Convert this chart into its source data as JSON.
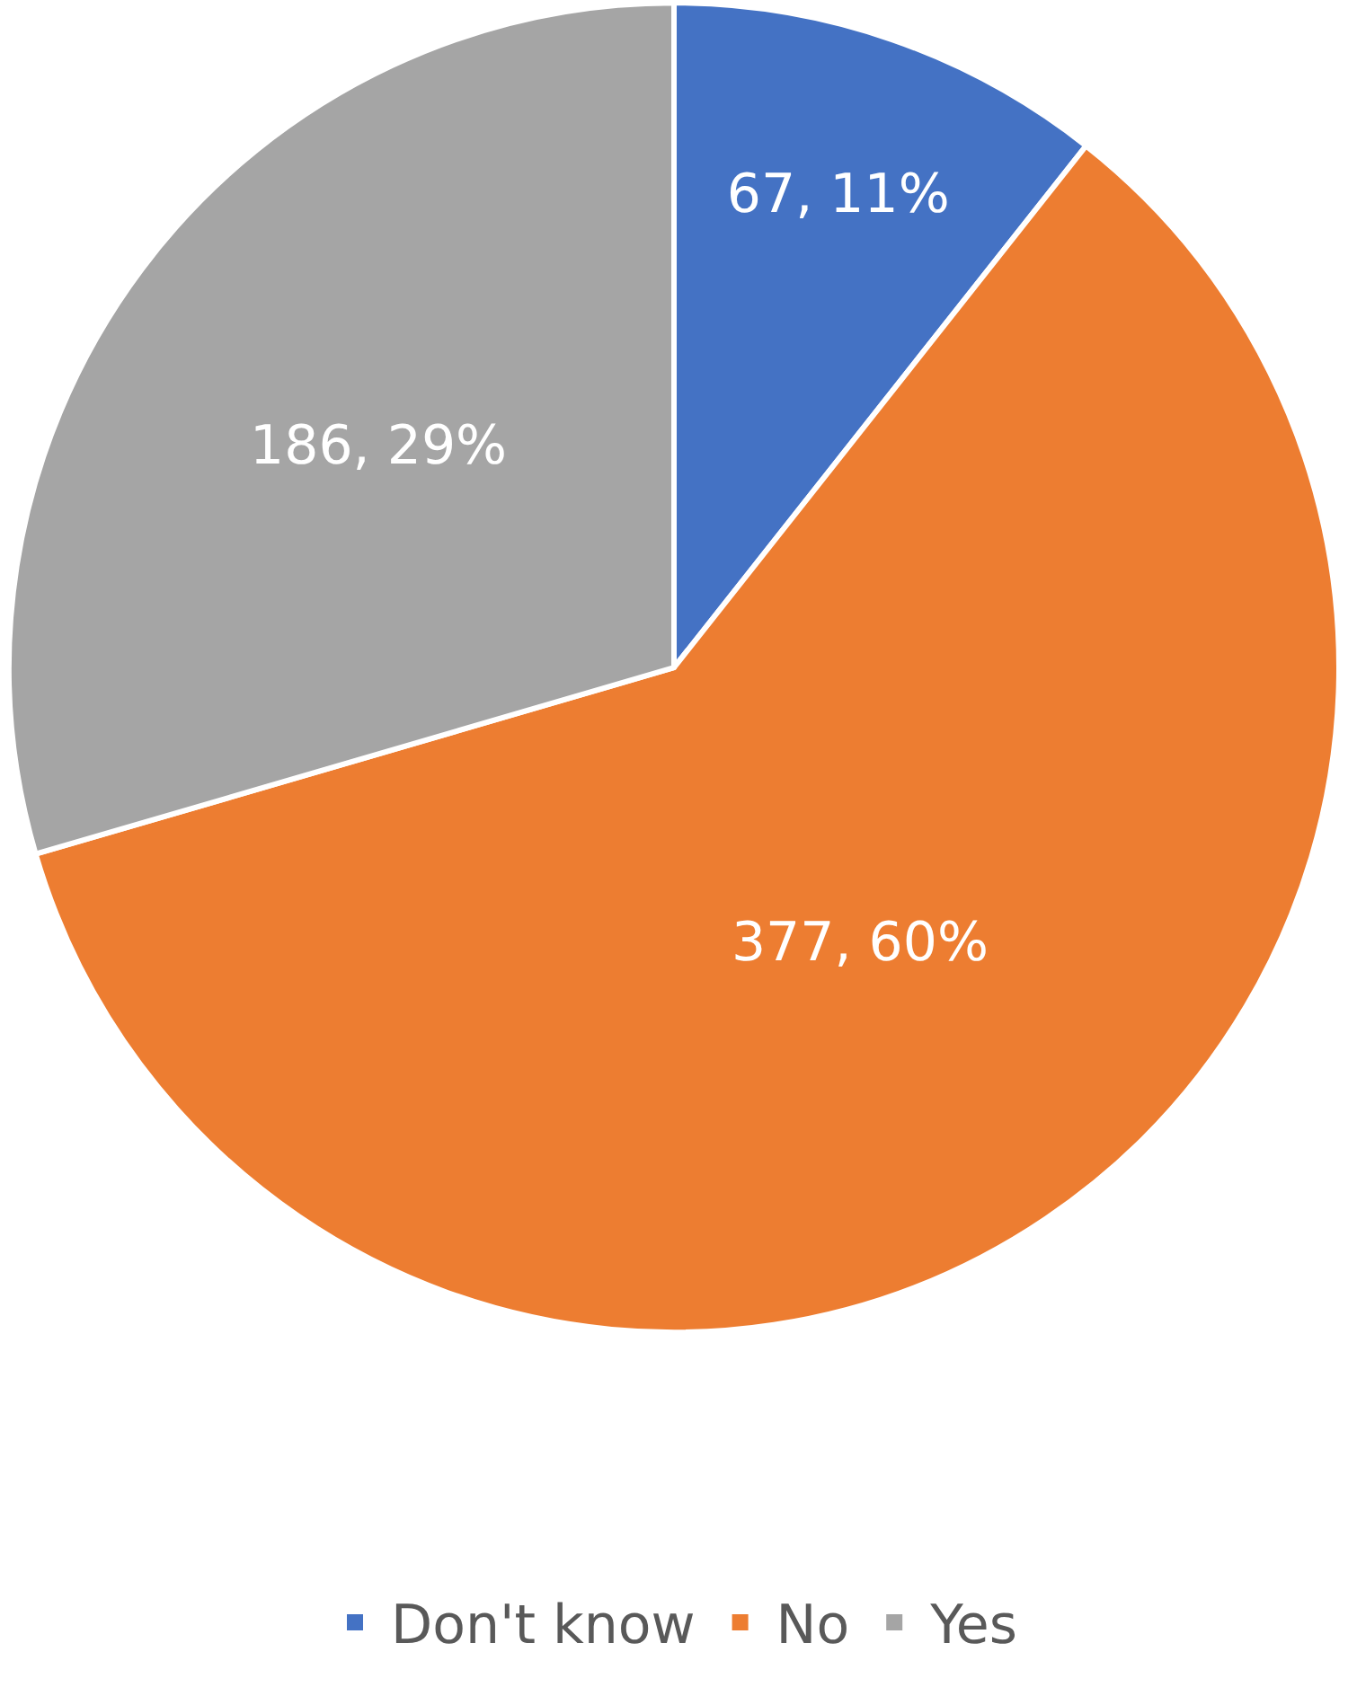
{
  "chart_data": {
    "type": "pie",
    "categories": [
      "Don't know",
      "No",
      "Yes"
    ],
    "values": [
      67,
      377,
      186
    ],
    "colors": [
      "#4472c4",
      "#ed7d31",
      "#a5a5a5"
    ],
    "value_labels": [
      "67, 11%",
      "377, 60%",
      "186, 29%"
    ],
    "legend": "bottom"
  }
}
